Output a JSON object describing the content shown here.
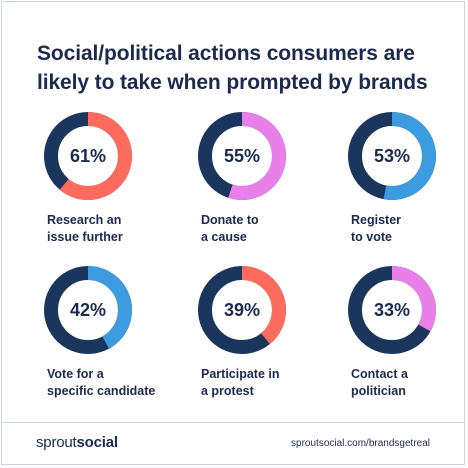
{
  "title_lines": [
    "Social/political actions consumers are",
    "likely to take when prompted by brands"
  ],
  "colors": {
    "track": "#1b365d",
    "coral": "#ff6b5c",
    "pink": "#e97fe8",
    "blue": "#3d9be0",
    "text": "#1b2a4e"
  },
  "chart_data": {
    "type": "pie",
    "title": "Social/political actions consumers are likely to take when prompted by brands",
    "items": [
      {
        "label_lines": [
          "Research an",
          "issue further"
        ],
        "value": 61,
        "display": "61%",
        "color": "coral"
      },
      {
        "label_lines": [
          "Donate to",
          "a cause"
        ],
        "value": 55,
        "display": "55%",
        "color": "pink"
      },
      {
        "label_lines": [
          "Register",
          "to vote"
        ],
        "value": 53,
        "display": "53%",
        "color": "blue"
      },
      {
        "label_lines": [
          "Vote for a",
          "specific candidate"
        ],
        "value": 42,
        "display": "42%",
        "color": "blue"
      },
      {
        "label_lines": [
          "Participate in",
          "a protest"
        ],
        "value": 39,
        "display": "39%",
        "color": "coral"
      },
      {
        "label_lines": [
          "Contact a",
          "politician"
        ],
        "value": 33,
        "display": "33%",
        "color": "pink"
      }
    ]
  },
  "footer": {
    "brand_light": "sprout",
    "brand_bold": "social",
    "url": "sproutsocial.com/brandsgetreal"
  }
}
